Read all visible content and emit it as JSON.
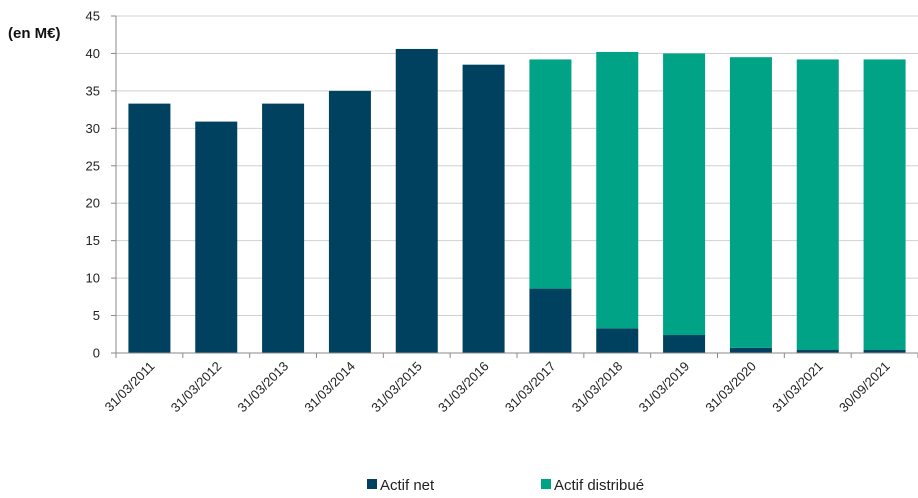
{
  "chart_data": {
    "type": "bar",
    "stacked": true,
    "unit_label": "(en M€)",
    "ylim": [
      0,
      45
    ],
    "yticks": [
      0,
      5,
      10,
      15,
      20,
      25,
      30,
      35,
      40,
      45
    ],
    "grid": true,
    "legend_position": "bottom",
    "categories": [
      "31/03/2011",
      "31/03/2012",
      "31/03/2013",
      "31/03/2014",
      "31/03/2015",
      "31/03/2016",
      "31/03/2017",
      "31/03/2018",
      "31/03/2019",
      "31/03/2020",
      "31/03/2021",
      "30/09/2021"
    ],
    "series": [
      {
        "name": "Actif net",
        "color": "#00415f",
        "values": [
          33.3,
          30.9,
          33.3,
          35.0,
          40.6,
          38.5,
          8.6,
          3.3,
          2.4,
          0.7,
          0.4,
          0.4
        ]
      },
      {
        "name": "Actif distribué",
        "color": "#00a386",
        "values": [
          0,
          0,
          0,
          0,
          0,
          0,
          30.6,
          36.9,
          37.6,
          38.8,
          38.8,
          38.8
        ]
      }
    ]
  }
}
